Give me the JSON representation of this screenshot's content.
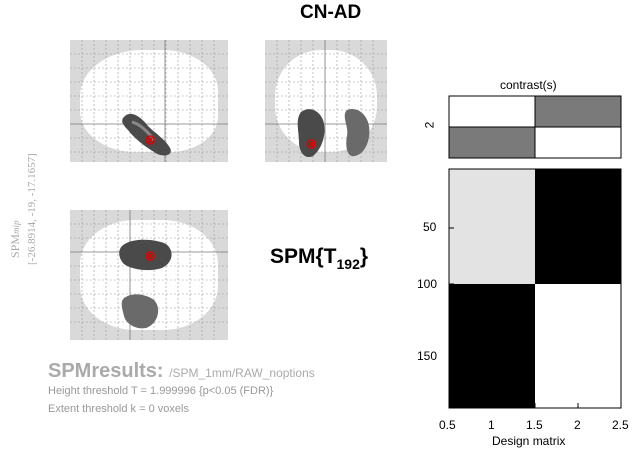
{
  "title": "CN-AD",
  "side_label": {
    "main": "SPM",
    "sub": "mip",
    "coords": "[-26.8914, -19, -17.1657]"
  },
  "stat_label": {
    "main": "SPM{T",
    "sub": "192",
    "close": "}"
  },
  "results": {
    "title": "SPMresults:",
    "path": "/SPM_1mm/RAW_noptions",
    "height_threshold": "Height threshold T = 1.999996  {p<0.05 (FDR)}",
    "extent_threshold": "Extent threshold k = 0 voxels"
  },
  "contrast": {
    "label": "contrast(s)",
    "index": "2",
    "weights": [
      -1,
      1
    ]
  },
  "design_matrix": {
    "xlabel": "Design matrix",
    "x_ticks": [
      "0.5",
      "1",
      "1.5",
      "2",
      "2.5"
    ],
    "y_ticks": [
      "50",
      "100",
      "150"
    ],
    "cells": [
      [
        "#e3e3e3",
        "#000000"
      ],
      [
        "#000000",
        "#ffffff"
      ]
    ]
  },
  "colors": {
    "glass_bg": "#d9d9d9",
    "blob": "#555555",
    "cursor": "#e00000",
    "label_grey": "#aaaaaa"
  }
}
